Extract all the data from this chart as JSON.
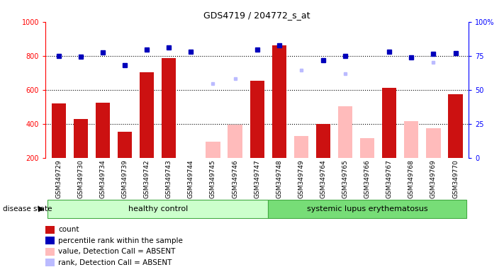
{
  "title": "GDS4719 / 204772_s_at",
  "samples": [
    "GSM349729",
    "GSM349730",
    "GSM349734",
    "GSM349739",
    "GSM349742",
    "GSM349743",
    "GSM349744",
    "GSM349745",
    "GSM349746",
    "GSM349747",
    "GSM349748",
    "GSM349749",
    "GSM349764",
    "GSM349765",
    "GSM349766",
    "GSM349767",
    "GSM349768",
    "GSM349769",
    "GSM349770"
  ],
  "healthy_count": 10,
  "groups": [
    "healthy control",
    "systemic lupus erythematosus"
  ],
  "count_values": [
    520,
    430,
    525,
    355,
    705,
    785,
    null,
    null,
    null,
    655,
    860,
    null,
    400,
    null,
    null,
    610,
    null,
    null,
    575
  ],
  "percentile_values": [
    800,
    795,
    820,
    745,
    835,
    850,
    825,
    null,
    null,
    835,
    860,
    null,
    775,
    800,
    null,
    825,
    790,
    810,
    815
  ],
  "absent_value_values": [
    null,
    null,
    null,
    null,
    null,
    null,
    null,
    295,
    395,
    null,
    null,
    330,
    null,
    505,
    315,
    null,
    415,
    375,
    null
  ],
  "absent_rank_values": [
    null,
    null,
    null,
    null,
    null,
    null,
    null,
    635,
    665,
    null,
    null,
    715,
    null,
    695,
    null,
    null,
    null,
    760,
    null
  ],
  "bar_color_dark_red": "#cc1111",
  "bar_color_pink": "#ffbbbb",
  "dot_color_blue": "#0000bb",
  "dot_color_light_blue": "#bbbbff",
  "healthy_bg": "#ccffcc",
  "sle_bg": "#77dd77",
  "xtick_bg": "#dddddd",
  "ylim_left": [
    200,
    1000
  ],
  "ylim_right": [
    0,
    100
  ],
  "yticks_left": [
    200,
    400,
    600,
    800,
    1000
  ],
  "yticks_right": [
    0,
    25,
    50,
    75,
    100
  ],
  "legend_items": [
    [
      "#cc1111",
      "count"
    ],
    [
      "#0000bb",
      "percentile rank within the sample"
    ],
    [
      "#ffbbbb",
      "value, Detection Call = ABSENT"
    ],
    [
      "#bbbbff",
      "rank, Detection Call = ABSENT"
    ]
  ]
}
